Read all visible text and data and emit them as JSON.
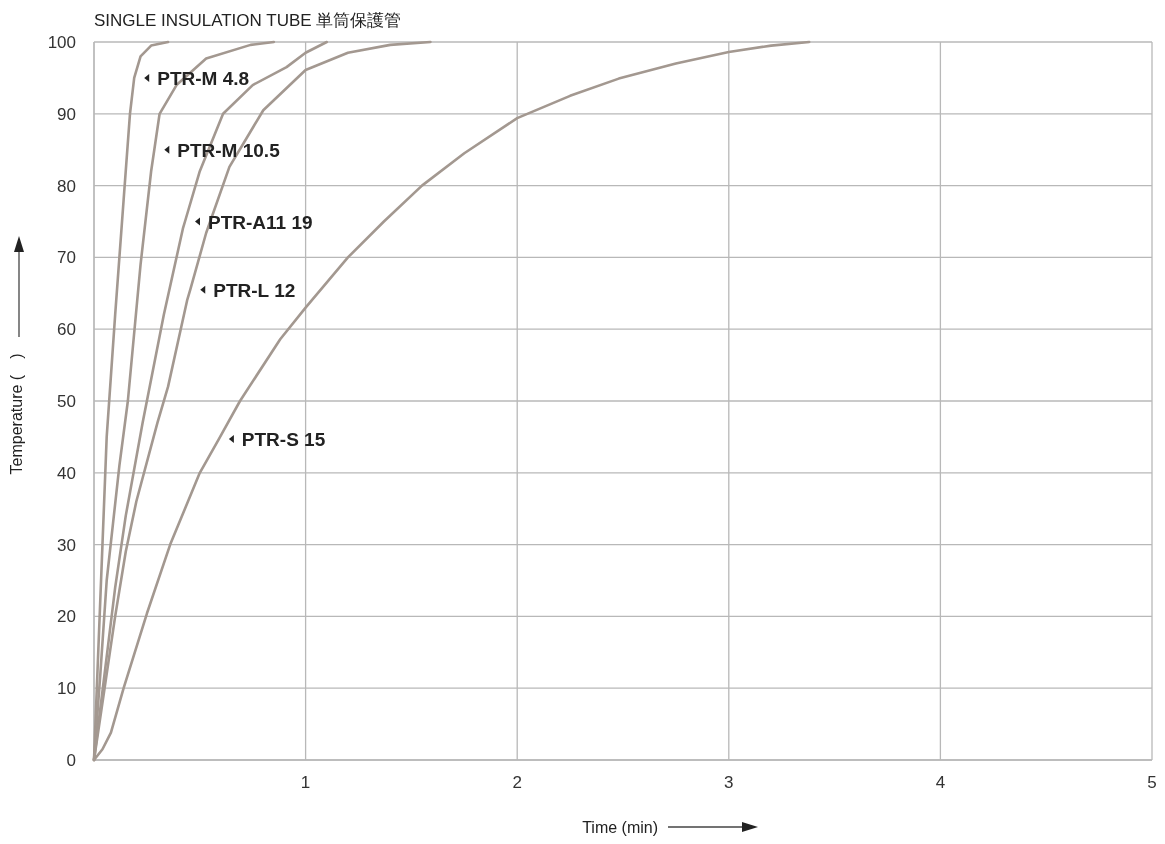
{
  "chart_data": {
    "type": "line",
    "title": "SINGLE INSULATION TUBE 単筒保護管",
    "xlabel": "Time (min)",
    "ylabel": "Temperature (　)",
    "xlim": [
      0,
      5
    ],
    "ylim": [
      0,
      100
    ],
    "xticks": [
      {
        "value": 0,
        "label": null
      },
      1,
      2,
      3,
      4,
      5
    ],
    "yticks": [
      0,
      10,
      20,
      30,
      40,
      50,
      60,
      70,
      80,
      90,
      100
    ],
    "grid": true,
    "series": [
      {
        "color": "#a39890",
        "x": [
          0,
          0.02,
          0.04,
          0.06,
          0.1,
          0.14,
          0.17,
          0.19,
          0.22,
          0.27,
          0.35
        ],
        "values": [
          0,
          15,
          30,
          45,
          62,
          78,
          90,
          95,
          98,
          99.5,
          100
        ]
      },
      {
        "color": "#a39890",
        "x": [
          0,
          0.03,
          0.06,
          0.09,
          0.12,
          0.16,
          0.22,
          0.27,
          0.285,
          0.31,
          0.39,
          0.53,
          0.74,
          0.85
        ],
        "values": [
          0,
          12,
          25,
          33,
          41,
          50,
          69,
          82,
          85,
          90,
          94,
          97.7,
          99.6,
          100
        ]
      },
      {
        "color": "#a39890",
        "x": [
          0,
          0.05,
          0.1,
          0.15,
          0.23,
          0.33,
          0.42,
          0.43,
          0.5,
          0.61,
          0.75,
          0.91,
          1.0,
          1.1
        ],
        "values": [
          0,
          12,
          24,
          34,
          47,
          62,
          74,
          75,
          82,
          90,
          94,
          96.5,
          98.5,
          100
        ]
      },
      {
        "color": "#a39890",
        "x": [
          0,
          0.05,
          0.1,
          0.15,
          0.2,
          0.3,
          0.35,
          0.44,
          0.455,
          0.53,
          0.64,
          0.8,
          1.0,
          1.2,
          1.4,
          1.59
        ],
        "values": [
          0,
          10,
          20,
          29,
          36,
          47,
          52,
          64,
          65.5,
          73.4,
          82.6,
          90.5,
          96.1,
          98.5,
          99.6,
          100
        ]
      },
      {
        "color": "#a39890",
        "x": [
          0,
          0.04,
          0.08,
          0.14,
          0.25,
          0.36,
          0.5,
          0.59,
          0.69,
          0.88,
          1.0,
          1.2,
          1.37,
          1.55,
          1.75,
          2.0,
          2.25,
          2.48,
          2.75,
          3.0,
          3.2,
          3.38
        ],
        "values": [
          0,
          1.5,
          3.8,
          10,
          20.4,
          30,
          40,
          44.7,
          50,
          58.6,
          63,
          70,
          75,
          80,
          84.5,
          89.4,
          92.5,
          94.9,
          97,
          98.6,
          99.5,
          100
        ]
      }
    ],
    "annotations": [
      {
        "text": "PTR-M 4.8",
        "x": 0.19,
        "y": 95
      },
      {
        "text": "PTR-M 10.5",
        "x": 0.285,
        "y": 85
      },
      {
        "text": "PTR-A11 19",
        "x": 0.43,
        "y": 75
      },
      {
        "text": "PTR-L 12",
        "x": 0.455,
        "y": 65.5
      },
      {
        "text": "PTR-S 15",
        "x": 0.59,
        "y": 44.7
      }
    ]
  }
}
